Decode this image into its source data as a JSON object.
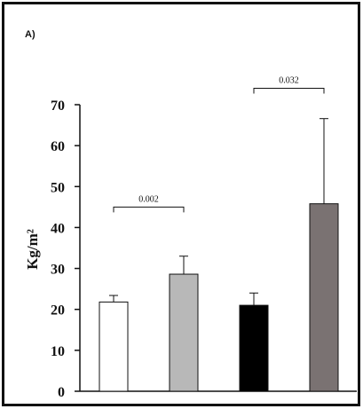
{
  "panel_label": "A)",
  "chart_data": {
    "type": "bar",
    "title": "",
    "xlabel": "",
    "ylabel": "Kg/m²",
    "ylim": [
      0,
      70
    ],
    "yticks": [
      0,
      10,
      20,
      30,
      40,
      50,
      60,
      70
    ],
    "grid": false,
    "legend": "none",
    "categories": [
      "",
      "",
      "",
      ""
    ],
    "values": [
      21.8,
      28.6,
      21.0,
      45.8
    ],
    "errors": [
      1.6,
      4.4,
      3.0,
      20.8
    ],
    "colors": [
      "#ffffff",
      "#b8b8b8",
      "#000000",
      "#7a7272"
    ],
    "annotations": [
      {
        "text": "0.002",
        "from_bar": 0,
        "to_bar": 1,
        "y": 45
      },
      {
        "text": "0.032",
        "from_bar": 2,
        "to_bar": 3,
        "y": 74
      }
    ]
  }
}
